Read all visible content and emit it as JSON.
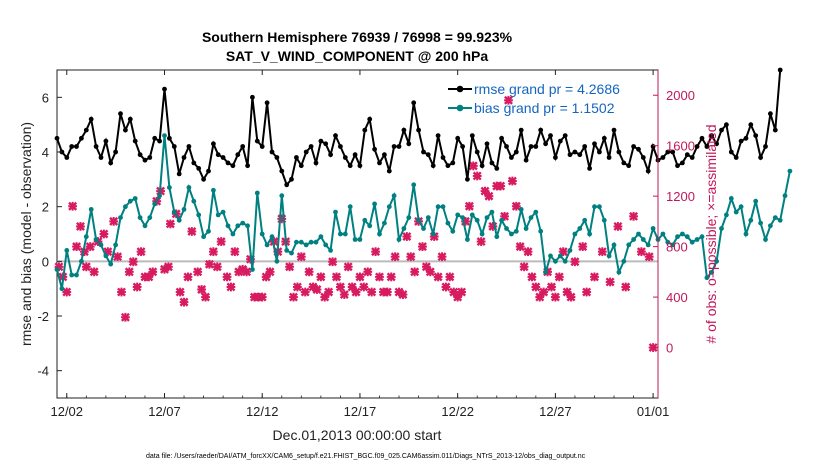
{
  "chart_data": {
    "type": "line",
    "title": "Southern Hemisphere 76939 / 76998 = 99.923%",
    "subtitle": "SAT_V_WIND_COMPONENT @ 200 hPa",
    "xlabel": "Dec.01,2013 00:00:00 start",
    "ylabel": "rmse and bias (model - observation)",
    "ylabel_right": "# of obs: o=possible; ×=assimilated",
    "footnote": "data file: /Users/raeder/DAI/ATM_forcXX/CAM6_setup/f.e21.FHIST_BGC.f09_025.CAM6assim.011/Diags_NTrS_2013-12/obs_diag_output.nc",
    "x_ticks": [
      "12/02",
      "12/07",
      "12/12",
      "12/17",
      "12/22",
      "12/27",
      "01/01"
    ],
    "x_tick_days": [
      1,
      6,
      11,
      16,
      21,
      26,
      31
    ],
    "y_ticks": [
      "6",
      "4",
      "2",
      "0",
      "-2",
      "-4"
    ],
    "y_tick_values": [
      6,
      4,
      2,
      0,
      -2,
      -4
    ],
    "ylim": [
      -5,
      7
    ],
    "y2_ticks": [
      "2000",
      "1600",
      "1200",
      "800",
      "400",
      "0"
    ],
    "y2_tick_values": [
      2000,
      1600,
      1200,
      800,
      400,
      0
    ],
    "y2lim": [
      -400,
      2200
    ],
    "xlim": [
      0.5,
      31.25
    ],
    "zero_line": 0,
    "legend_position": "top-right",
    "colors": {
      "rmse": "#000000",
      "bias": "#008080",
      "obs": "#d81b60",
      "zero": "#bbbbbb"
    },
    "series": [
      {
        "name": "rmse grand pr = 4.2686",
        "color": "#000000",
        "step_days": 0.25,
        "start_day": 0.5,
        "values": [
          4.5,
          4.0,
          3.8,
          4.2,
          4.2,
          4.5,
          4.8,
          5.2,
          4.2,
          3.8,
          4.4,
          3.6,
          4.0,
          5.4,
          4.8,
          5.2,
          4.4,
          3.9,
          3.7,
          3.8,
          4.5,
          4.4,
          6.3,
          4.5,
          4.2,
          3.2,
          3.8,
          4.2,
          3.6,
          3.4,
          3.0,
          3.3,
          4.3,
          3.9,
          3.8,
          3.6,
          3.5,
          3.9,
          4.2,
          3.5,
          6.0,
          4.4,
          4.2,
          5.8,
          4.0,
          3.8,
          3.3,
          2.8,
          3.0,
          3.8,
          3.5,
          4.0,
          4.2,
          3.6,
          4.4,
          4.3,
          3.9,
          4.6,
          4.2,
          3.8,
          3.5,
          3.9,
          3.5,
          4.8,
          5.2,
          4.1,
          3.6,
          3.9,
          3.3,
          4.2,
          4.2,
          4.8,
          4.3,
          5.8,
          4.8,
          4.0,
          3.9,
          3.5,
          4.6,
          3.8,
          3.5,
          3.6,
          4.5,
          4.2,
          3.0,
          4.6,
          4.0,
          3.5,
          4.3,
          3.6,
          3.4,
          4.5,
          4.2,
          3.8,
          4.0,
          4.8,
          3.7,
          4.2,
          4.2,
          4.8,
          4.3,
          4.6,
          3.8,
          4.4,
          4.6,
          3.9,
          4.0,
          3.9,
          4.2,
          3.4,
          4.3,
          4.0,
          4.5,
          3.8,
          4.8,
          4.0,
          3.6,
          3.5,
          4.2,
          4.1,
          3.8,
          3.3,
          4.2,
          3.7,
          3.8,
          4.0,
          4.0,
          3.5,
          3.6,
          3.9,
          3.8,
          4.2,
          4.5,
          4.2,
          4.6,
          4.3,
          4.8,
          5.0,
          4.0,
          3.8,
          4.4,
          4.5,
          5.0,
          4.6,
          3.8,
          4.2,
          5.4,
          4.8,
          7.0
        ],
        "data_label": ""
      },
      {
        "name": "bias grand pr = 1.1502",
        "color": "#008080",
        "step_days": 0.25,
        "start_day": 0.5,
        "values": [
          -0.3,
          -1.0,
          0.4,
          -0.5,
          -0.5,
          0.0,
          0.9,
          1.9,
          0.8,
          0.6,
          0.2,
          -0.1,
          0.6,
          1.6,
          2.0,
          2.2,
          2.3,
          1.6,
          1.3,
          1.6,
          2.1,
          2.4,
          4.6,
          2.7,
          1.8,
          1.5,
          1.9,
          2.7,
          2.2,
          1.7,
          0.9,
          1.1,
          2.6,
          1.7,
          1.8,
          1.3,
          1.0,
          1.3,
          1.4,
          1.3,
          -0.3,
          2.5,
          1.0,
          0.6,
          0.9,
          0.0,
          2.4,
          0.4,
          0.3,
          0.7,
          0.7,
          0.6,
          0.7,
          0.7,
          0.9,
          0.6,
          0.4,
          1.8,
          1.0,
          1.0,
          2.0,
          0.8,
          0.8,
          1.5,
          1.3,
          2.1,
          1.0,
          1.4,
          2.0,
          2.4,
          0.8,
          1.2,
          1.6,
          2.8,
          1.5,
          1.2,
          1.6,
          1.0,
          2.0,
          2.0,
          1.4,
          1.1,
          1.7,
          1.6,
          0.8,
          1.7,
          1.5,
          1.0,
          1.6,
          1.8,
          0.9,
          1.5,
          1.2,
          1.0,
          1.1,
          1.9,
          1.2,
          1.6,
          1.8,
          1.1,
          -0.4,
          0.2,
          0.0,
          0.2,
          0.0,
          0.4,
          1.0,
          1.2,
          1.5,
          1.0,
          2.0,
          2.0,
          1.5,
          0.2,
          0.6,
          -0.4,
          0.0,
          0.6,
          0.8,
          1.0,
          0.8,
          0.6,
          1.2,
          0.8,
          1.0,
          0.7,
          0.6,
          0.9,
          1.0,
          0.9,
          0.7,
          0.8,
          0.9,
          -0.6,
          -0.4,
          0.0,
          1.2,
          1.7,
          2.3,
          1.8,
          2.0,
          1.0,
          1.5,
          2.2,
          1.4,
          0.8,
          1.3,
          1.6,
          1.5,
          2.4,
          3.3
        ],
        "data_label": ""
      },
      {
        "name": "",
        "role": "obs count",
        "color": "#d81b60",
        "points": [
          [
            0.6,
            640
          ],
          [
            0.8,
            560
          ],
          [
            1.0,
            440
          ],
          [
            1.3,
            1120
          ],
          [
            1.5,
            800
          ],
          [
            1.7,
            960
          ],
          [
            1.9,
            760
          ],
          [
            2.0,
            640
          ],
          [
            2.2,
            800
          ],
          [
            2.4,
            600
          ],
          [
            2.6,
            840
          ],
          [
            2.9,
            900
          ],
          [
            3.1,
            760
          ],
          [
            3.4,
            1000
          ],
          [
            3.6,
            720
          ],
          [
            3.8,
            440
          ],
          [
            4.0,
            240
          ],
          [
            4.2,
            600
          ],
          [
            4.4,
            680
          ],
          [
            4.6,
            480
          ],
          [
            4.8,
            760
          ],
          [
            5.0,
            560
          ],
          [
            5.2,
            560
          ],
          [
            5.4,
            600
          ],
          [
            5.6,
            1160
          ],
          [
            5.8,
            1240
          ],
          [
            6.0,
            620
          ],
          [
            6.2,
            640
          ],
          [
            6.3,
            980
          ],
          [
            6.6,
            1060
          ],
          [
            6.8,
            440
          ],
          [
            7.0,
            360
          ],
          [
            7.2,
            560
          ],
          [
            7.4,
            920
          ],
          [
            7.7,
            600
          ],
          [
            7.9,
            460
          ],
          [
            8.1,
            400
          ],
          [
            8.3,
            660
          ],
          [
            8.5,
            760
          ],
          [
            8.7,
            640
          ],
          [
            8.9,
            840
          ],
          [
            9.2,
            560
          ],
          [
            9.4,
            480
          ],
          [
            9.6,
            760
          ],
          [
            9.8,
            600
          ],
          [
            10.0,
            620
          ],
          [
            10.2,
            600
          ],
          [
            10.4,
            700
          ],
          [
            10.6,
            400
          ],
          [
            10.8,
            400
          ],
          [
            11.0,
            400
          ],
          [
            11.2,
            560
          ],
          [
            11.4,
            600
          ],
          [
            11.6,
            840
          ],
          [
            11.8,
            760
          ],
          [
            12.0,
            1020
          ],
          [
            12.2,
            840
          ],
          [
            12.4,
            640
          ],
          [
            12.6,
            400
          ],
          [
            12.8,
            480
          ],
          [
            13.0,
            720
          ],
          [
            13.2,
            440
          ],
          [
            13.4,
            600
          ],
          [
            13.6,
            480
          ],
          [
            13.8,
            460
          ],
          [
            14.0,
            560
          ],
          [
            14.2,
            400
          ],
          [
            14.4,
            440
          ],
          [
            14.6,
            680
          ],
          [
            14.8,
            560
          ],
          [
            15.0,
            480
          ],
          [
            15.2,
            420
          ],
          [
            15.4,
            640
          ],
          [
            15.6,
            480
          ],
          [
            15.8,
            440
          ],
          [
            16.0,
            560
          ],
          [
            16.2,
            480
          ],
          [
            16.4,
            600
          ],
          [
            16.6,
            440
          ],
          [
            16.8,
            760
          ],
          [
            17.0,
            560
          ],
          [
            17.2,
            440
          ],
          [
            17.4,
            440
          ],
          [
            17.6,
            560
          ],
          [
            17.8,
            720
          ],
          [
            18.0,
            440
          ],
          [
            18.2,
            420
          ],
          [
            18.4,
            880
          ],
          [
            18.6,
            720
          ],
          [
            18.8,
            600
          ],
          [
            19.0,
            1000
          ],
          [
            19.2,
            800
          ],
          [
            19.4,
            640
          ],
          [
            19.6,
            600
          ],
          [
            19.8,
            880
          ],
          [
            20.0,
            560
          ],
          [
            20.2,
            720
          ],
          [
            20.4,
            480
          ],
          [
            20.6,
            560
          ],
          [
            20.8,
            440
          ],
          [
            21.0,
            400
          ],
          [
            21.2,
            440
          ],
          [
            21.4,
            1000
          ],
          [
            21.6,
            1120
          ],
          [
            21.8,
            1440
          ],
          [
            22.0,
            1360
          ],
          [
            22.2,
            840
          ],
          [
            22.4,
            1240
          ],
          [
            22.6,
            1200
          ],
          [
            22.8,
            960
          ],
          [
            23.0,
            1280
          ],
          [
            23.2,
            1280
          ],
          [
            23.4,
            1040
          ],
          [
            23.6,
            1960
          ],
          [
            23.8,
            1320
          ],
          [
            24.0,
            1120
          ],
          [
            24.2,
            800
          ],
          [
            24.4,
            640
          ],
          [
            24.6,
            760
          ],
          [
            24.8,
            560
          ],
          [
            25.0,
            480
          ],
          [
            25.2,
            400
          ],
          [
            25.4,
            440
          ],
          [
            25.6,
            600
          ],
          [
            25.8,
            480
          ],
          [
            26.0,
            400
          ],
          [
            26.2,
            560
          ],
          [
            26.4,
            760
          ],
          [
            26.6,
            440
          ],
          [
            26.8,
            400
          ],
          [
            27.0,
            680
          ],
          [
            27.4,
            800
          ],
          [
            27.6,
            440
          ],
          [
            28.0,
            560
          ],
          [
            28.4,
            760
          ],
          [
            28.8,
            520
          ],
          [
            29.2,
            960
          ],
          [
            29.6,
            480
          ],
          [
            30.0,
            1040
          ],
          [
            30.4,
            760
          ],
          [
            30.8,
            720
          ],
          [
            31.0,
            0
          ]
        ]
      }
    ]
  }
}
